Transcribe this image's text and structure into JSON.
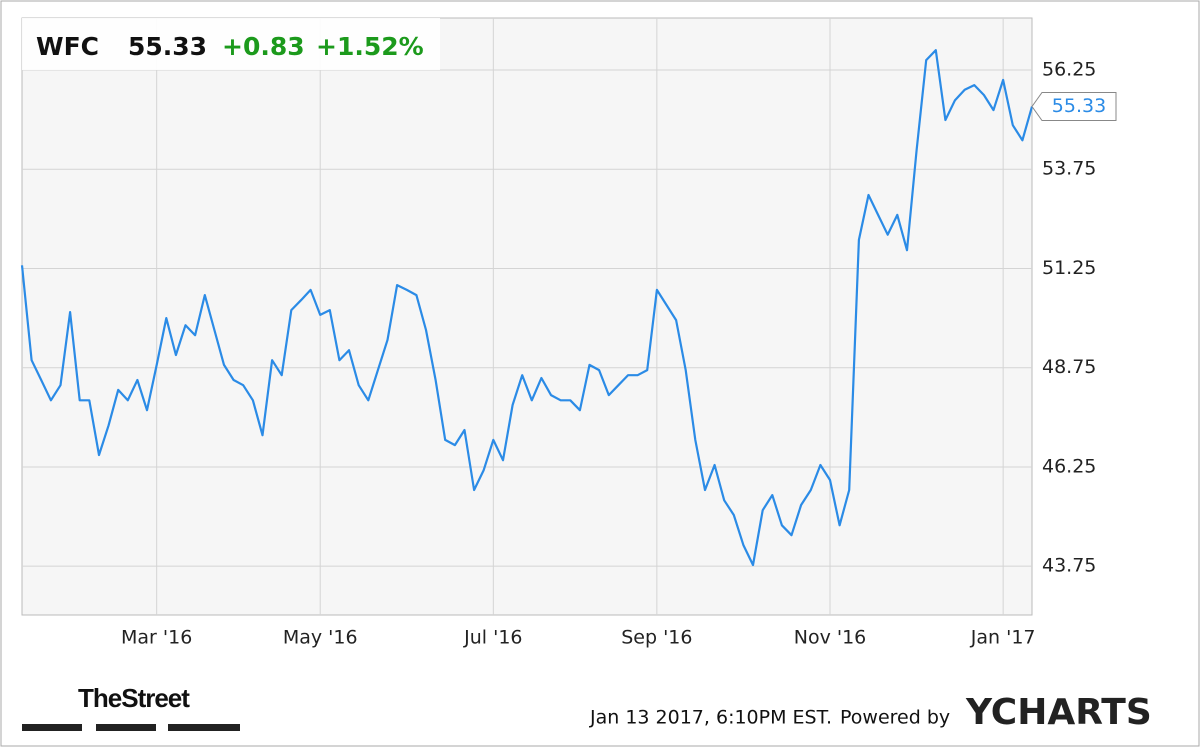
{
  "header": {
    "symbol": "WFC",
    "price": "55.33",
    "change": "+0.83",
    "change_pct": "+1.52%"
  },
  "footer": {
    "brand": "TheStreet",
    "timestamp": "Jan 13 2017, 6:10PM EST.",
    "powered": "Powered by",
    "logo": "YCHARTS"
  },
  "chart_data": {
    "type": "line",
    "categories": [
      null,
      null,
      null,
      null,
      null,
      null,
      null,
      null,
      null,
      null,
      null,
      null,
      null,
      null,
      "Mar '16",
      null,
      null,
      null,
      null,
      null,
      null,
      null,
      null,
      null,
      null,
      null,
      null,
      null,
      null,
      null,
      null,
      "May '16",
      null,
      null,
      null,
      null,
      null,
      null,
      null,
      null,
      null,
      null,
      null,
      null,
      null,
      null,
      null,
      null,
      null,
      "Jul '16",
      null,
      null,
      null,
      null,
      null,
      null,
      null,
      null,
      null,
      null,
      null,
      null,
      null,
      null,
      null,
      null,
      "Sep '16",
      null,
      null,
      null,
      null,
      null,
      null,
      null,
      null,
      null,
      null,
      null,
      null,
      null,
      null,
      null,
      null,
      null,
      "Nov '16",
      null,
      null,
      null,
      null,
      null,
      null,
      null,
      null,
      null,
      null,
      null,
      null,
      null,
      null,
      null,
      null,
      null,
      "Jan '17",
      null,
      null,
      null
    ],
    "series": [
      {
        "name": "WFC",
        "color": "#2b8be6",
        "values": [
          51.33,
          48.94,
          48.44,
          47.93,
          48.31,
          50.15,
          47.93,
          47.93,
          46.55,
          47.3,
          48.19,
          47.93,
          48.44,
          47.68,
          48.82,
          50.0,
          49.07,
          49.82,
          49.57,
          50.58,
          49.7,
          48.82,
          48.44,
          48.31,
          47.93,
          47.05,
          48.94,
          48.56,
          50.2,
          50.45,
          50.71,
          50.08,
          50.2,
          48.94,
          49.19,
          48.31,
          47.93,
          48.69,
          49.45,
          50.83,
          50.71,
          50.58,
          49.7,
          48.44,
          46.93,
          46.8,
          47.18,
          45.67,
          46.17,
          46.93,
          46.42,
          47.81,
          48.56,
          47.93,
          48.49,
          48.06,
          47.93,
          47.93,
          47.68,
          48.82,
          48.69,
          48.06,
          48.31,
          48.56,
          48.56,
          48.69,
          50.71,
          50.33,
          49.95,
          48.69,
          46.93,
          45.67,
          46.3,
          45.41,
          45.04,
          44.28,
          43.78,
          45.16,
          45.54,
          44.78,
          44.53,
          45.29,
          45.67,
          46.3,
          45.92,
          44.78,
          45.67,
          51.97,
          53.1,
          52.6,
          52.1,
          52.6,
          51.71,
          54.23,
          56.5,
          56.75,
          54.99,
          55.49,
          55.75,
          55.87,
          55.62,
          55.24,
          56.0,
          54.86,
          54.48,
          55.33
        ]
      }
    ],
    "ylim": [
      42.52,
      57.56
    ],
    "yticks": [
      43.75,
      46.25,
      48.75,
      51.25,
      53.75,
      56.25
    ],
    "grid": true
  }
}
